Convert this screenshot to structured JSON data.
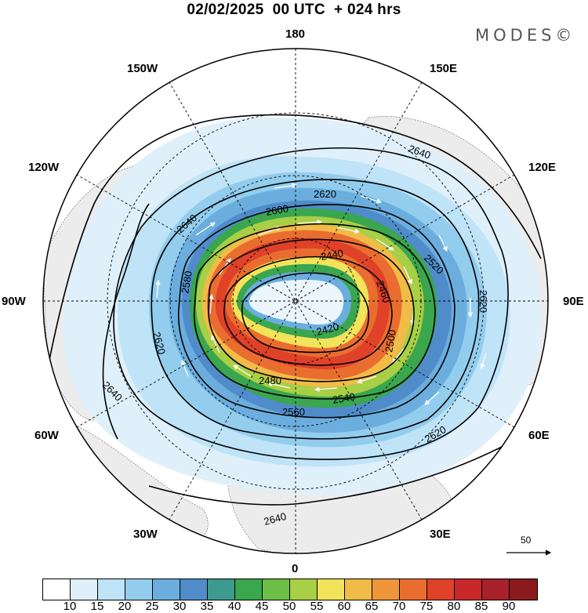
{
  "header": {
    "title": "02/02/2025  00 UTC  + 024 hrs",
    "brand": "MODES©"
  },
  "longitude_labels": {
    "n180": "180",
    "e150": "150E",
    "e120": "120E",
    "e90": "90E",
    "e60": "60E",
    "e30": "30E",
    "s0": "0",
    "w30": "30W",
    "w60": "60W",
    "w90": "90W",
    "w120": "120W",
    "w150": "150W"
  },
  "contour_labels": [
    "2640",
    "2620",
    "2600",
    "2580",
    "2560",
    "2540",
    "2520",
    "2500",
    "2480",
    "2460",
    "2440",
    "2420"
  ],
  "wind_scale": {
    "label": "50"
  },
  "colorbar": {
    "colors": [
      "#ffffff",
      "#dff0fb",
      "#bfe3f7",
      "#93cdee",
      "#6baede",
      "#4f8cc9",
      "#3c9b8e",
      "#3aa64e",
      "#6cbf47",
      "#a8cf45",
      "#f2e35a",
      "#f1bb48",
      "#ee9639",
      "#ea6d30",
      "#df4129",
      "#c8282a",
      "#a8212b",
      "#8a1a1e"
    ],
    "labels": [
      "10",
      "15",
      "20",
      "25",
      "30",
      "35",
      "40",
      "45",
      "50",
      "55",
      "60",
      "65",
      "70",
      "75",
      "80",
      "85",
      "90"
    ]
  }
}
